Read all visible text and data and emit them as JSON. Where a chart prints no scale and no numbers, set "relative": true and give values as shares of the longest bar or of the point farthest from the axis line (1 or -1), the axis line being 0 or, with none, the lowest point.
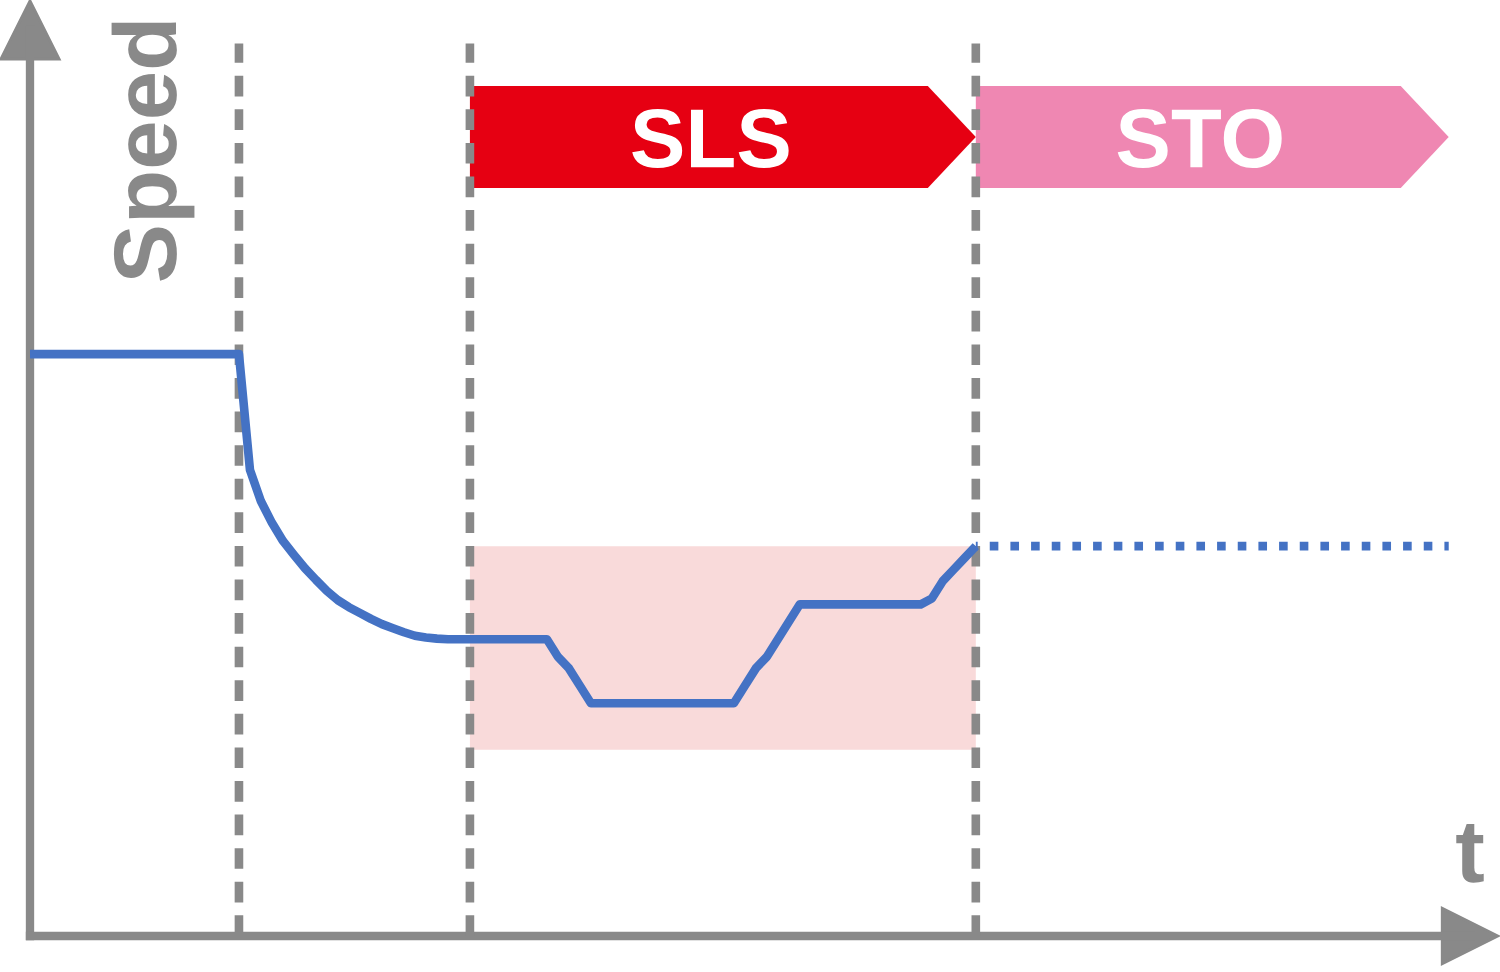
{
  "chart_data": {
    "type": "line",
    "relative": true,
    "xlabel": "t",
    "ylabel": "Speed",
    "annotations": [
      "SLS",
      "STO"
    ],
    "categories": [
      null,
      null,
      null,
      null,
      null,
      null,
      null,
      null,
      null,
      null,
      null,
      null,
      null,
      null,
      null,
      null,
      null,
      null,
      null,
      null,
      null,
      null,
      null,
      null,
      null,
      null,
      null,
      null,
      null,
      null,
      null,
      null,
      null,
      null,
      null,
      null,
      null,
      null,
      null,
      null,
      null,
      null,
      null,
      null,
      null,
      null,
      null,
      null,
      null,
      null,
      null,
      null,
      null,
      null,
      null,
      null,
      null,
      null,
      null,
      null,
      null,
      null,
      null,
      null,
      null,
      null,
      null,
      null,
      null,
      null,
      null,
      null,
      null,
      null,
      null,
      null,
      null,
      null,
      null,
      null,
      null,
      null,
      null,
      null,
      null,
      null,
      null,
      null,
      null,
      null,
      null,
      null,
      null,
      null,
      null,
      null,
      null,
      null,
      null,
      null,
      null,
      null,
      null,
      null,
      null,
      null,
      null,
      null,
      null,
      null,
      null,
      null,
      null,
      null,
      null,
      null,
      null,
      null,
      null,
      null,
      null,
      null,
      null,
      null,
      null,
      null,
      null,
      null,
      null,
      null
    ],
    "series": [
      {
        "color": "#4472c4",
        "line_style": "solid",
        "values": [
          1,
          1,
          1,
          1,
          1,
          1,
          1,
          1,
          1,
          1,
          1,
          1,
          1,
          1,
          1,
          1,
          1,
          1,
          1,
          1,
          0.801,
          0.747,
          0.71,
          0.679,
          0.655,
          0.632,
          0.612,
          0.593,
          0.577,
          0.565,
          0.555,
          0.545,
          0.536,
          0.529,
          0.522,
          0.516,
          0.513,
          0.511,
          0.51,
          0.51,
          0.51,
          0.51,
          0.51,
          0.51,
          0.51,
          0.51,
          0.51,
          0.51,
          0.48,
          0.46,
          0.43,
          0.4,
          0.4,
          0.4,
          0.4,
          0.4,
          0.4,
          0.4,
          0.4,
          0.4,
          0.4,
          0.4,
          0.4,
          0.4,
          0.4,
          0.43,
          0.46,
          0.48,
          0.51,
          0.54,
          0.57,
          0.57,
          0.57,
          0.57,
          0.57,
          0.57,
          0.57,
          0.57,
          0.57,
          0.57,
          0.57,
          0.57,
          0.58,
          0.61,
          0.63,
          0.65,
          0.67,
          null,
          null,
          null,
          null,
          null,
          null,
          null,
          null,
          null,
          null,
          null,
          null,
          null,
          null,
          null,
          null,
          null,
          null,
          null,
          null,
          null,
          null,
          null,
          null,
          null,
          null,
          null,
          null,
          null,
          null,
          null,
          null,
          null,
          null,
          null,
          null,
          null,
          null,
          null,
          null,
          null,
          null,
          null
        ],
        "upper": [
          null,
          null,
          null,
          null,
          null,
          null,
          null,
          null,
          null,
          null,
          null,
          null,
          null,
          null,
          null,
          null,
          null,
          null,
          null,
          null,
          null,
          null,
          null,
          null,
          null,
          null,
          null,
          null,
          null,
          null,
          null,
          null,
          null,
          null,
          null,
          null,
          null,
          null,
          null,
          null,
          0.67,
          0.67,
          0.67,
          0.67,
          0.67,
          0.67,
          0.67,
          0.67,
          0.67,
          0.67,
          0.67,
          0.67,
          0.67,
          0.67,
          0.67,
          0.67,
          0.67,
          0.67,
          0.67,
          0.67,
          0.67,
          0.67,
          0.67,
          0.67,
          0.67,
          0.67,
          0.67,
          0.67,
          0.67,
          0.67,
          0.67,
          0.67,
          0.67,
          0.67,
          0.67,
          0.67,
          0.67,
          0.67,
          0.67,
          0.67,
          0.67,
          0.67,
          0.67,
          0.67,
          0.67,
          0.67,
          0.67,
          null,
          null,
          null,
          null,
          null,
          null,
          null,
          null,
          null,
          null,
          null,
          null,
          null,
          null,
          null,
          null,
          null,
          null,
          null,
          null,
          null,
          null,
          null,
          null,
          null,
          null,
          null,
          null,
          null,
          null,
          null,
          null,
          null,
          null,
          null,
          null,
          null,
          null,
          null,
          null,
          null,
          null,
          null
        ],
        "lower": [
          null,
          null,
          null,
          null,
          null,
          null,
          null,
          null,
          null,
          null,
          null,
          null,
          null,
          null,
          null,
          null,
          null,
          null,
          null,
          null,
          null,
          null,
          null,
          null,
          null,
          null,
          null,
          null,
          null,
          null,
          null,
          null,
          null,
          null,
          null,
          null,
          null,
          null,
          null,
          null,
          0.32,
          0.32,
          0.32,
          0.32,
          0.32,
          0.32,
          0.32,
          0.32,
          0.32,
          0.32,
          0.32,
          0.32,
          0.32,
          0.32,
          0.32,
          0.32,
          0.32,
          0.32,
          0.32,
          0.32,
          0.32,
          0.32,
          0.32,
          0.32,
          0.32,
          0.32,
          0.32,
          0.32,
          0.32,
          0.32,
          0.32,
          0.32,
          0.32,
          0.32,
          0.32,
          0.32,
          0.32,
          0.32,
          0.32,
          0.32,
          0.32,
          0.32,
          0.32,
          0.32,
          0.32,
          0.32,
          0.32,
          null,
          null,
          null,
          null,
          null,
          null,
          null,
          null,
          null,
          null,
          null,
          null,
          null,
          null,
          null,
          null,
          null,
          null,
          null,
          null,
          null,
          null,
          null,
          null,
          null,
          null,
          null,
          null,
          null,
          null,
          null,
          null,
          null,
          null,
          null,
          null,
          null,
          null,
          null,
          null,
          null,
          null,
          null
        ]
      },
      {
        "color": "#4472c4",
        "line_style": "dotted",
        "values": [
          null,
          null,
          null,
          null,
          null,
          null,
          null,
          null,
          null,
          null,
          null,
          null,
          null,
          null,
          null,
          null,
          null,
          null,
          null,
          null,
          null,
          null,
          null,
          null,
          null,
          null,
          null,
          null,
          null,
          null,
          null,
          null,
          null,
          null,
          null,
          null,
          null,
          null,
          null,
          null,
          null,
          null,
          null,
          null,
          null,
          null,
          null,
          null,
          null,
          null,
          null,
          null,
          null,
          null,
          null,
          null,
          null,
          null,
          null,
          null,
          null,
          null,
          null,
          null,
          null,
          null,
          null,
          null,
          null,
          null,
          null,
          null,
          null,
          null,
          null,
          null,
          null,
          null,
          null,
          null,
          null,
          null,
          null,
          null,
          null,
          null,
          0.67,
          0.67,
          0.67,
          0.67,
          0.67,
          0.67,
          0.67,
          0.67,
          0.67,
          0.67,
          0.67,
          0.67,
          0.67,
          0.67,
          0.67,
          0.67,
          0.67,
          0.67,
          0.67,
          0.67,
          0.67,
          0.67,
          0.67,
          0.67,
          0.67,
          0.67,
          0.67,
          0.67,
          0.67,
          0.67,
          0.67,
          0.67,
          0.67,
          0.67,
          0.67,
          0.67,
          0.67,
          0.67,
          0.67,
          0.67,
          0.67,
          0.67,
          0.67,
          0.67
        ]
      }
    ]
  }
}
